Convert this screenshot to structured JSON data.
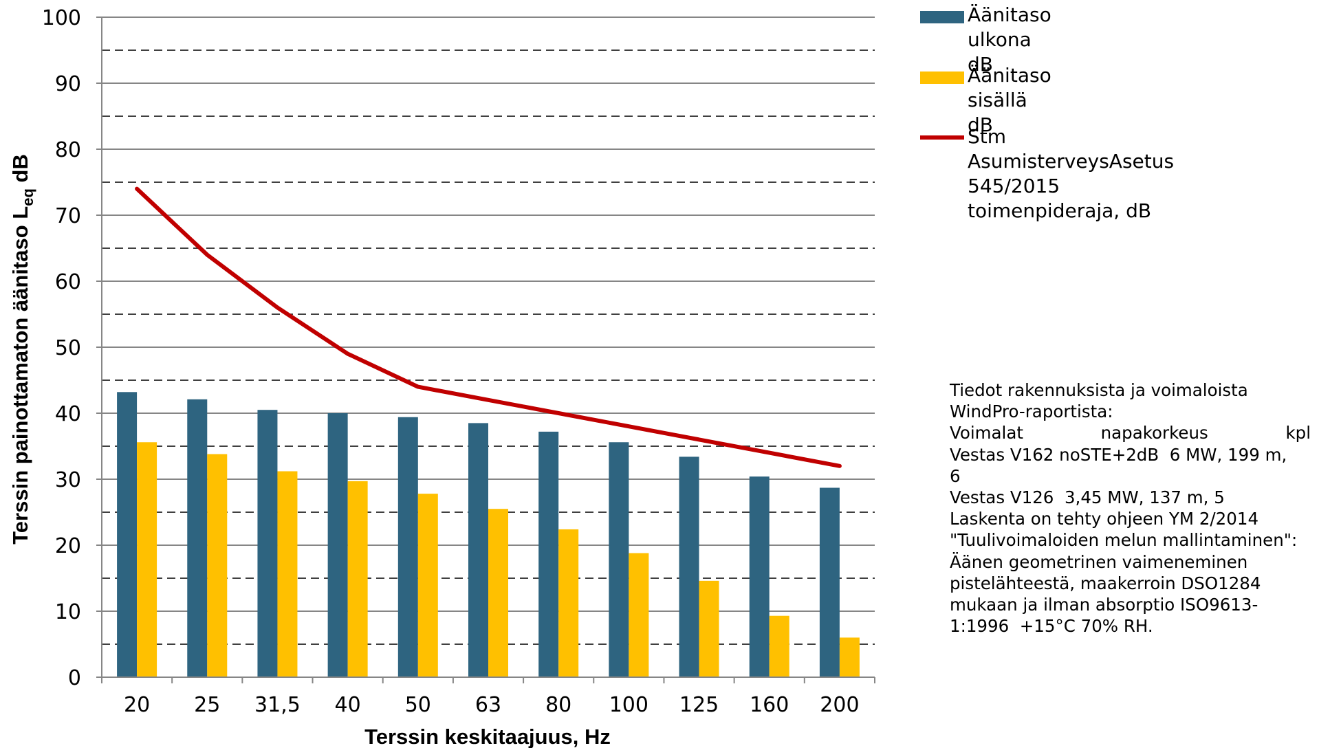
{
  "chart_data": {
    "type": "bar",
    "xlabel": "Terssin keskitaajuus, Hz",
    "ylabel": {
      "main": "Terssin painottamaton äänitaso L",
      "sub": "eq",
      "suffix": " dB"
    },
    "categories": [
      "20",
      "25",
      "31,5",
      "40",
      "50",
      "63",
      "80",
      "100",
      "125",
      "160",
      "200"
    ],
    "ylim": [
      0,
      100
    ],
    "yticks": [
      0,
      10,
      20,
      30,
      40,
      50,
      60,
      70,
      80,
      90,
      100
    ],
    "grid": {
      "solid_every": 10,
      "dashed_offsets": [
        5,
        15,
        25,
        35,
        45,
        55,
        65,
        75,
        85,
        95
      ]
    },
    "series": [
      {
        "name": "Äänitaso ulkona dB",
        "kind": "bar",
        "color": "#2E6480",
        "values": [
          43.2,
          42.1,
          40.5,
          40.0,
          39.4,
          38.5,
          37.2,
          35.6,
          33.4,
          30.4,
          28.7
        ]
      },
      {
        "name": "Äänitaso sisällä dB",
        "kind": "bar",
        "color": "#FFC000",
        "values": [
          35.6,
          33.8,
          31.2,
          29.7,
          27.8,
          25.5,
          22.4,
          18.8,
          14.6,
          9.3,
          6.0
        ]
      },
      {
        "name": "Stm AsumisterveysAsetus 545/2015\ntoimenpideraja, dB",
        "kind": "line",
        "color": "#C00000",
        "values": [
          74,
          64,
          56,
          49,
          44,
          42,
          40,
          38,
          36,
          34,
          32
        ]
      }
    ],
    "legend_position": "right"
  },
  "note": {
    "line1": "Tiedot rakennuksista ja voimaloista",
    "line2": "WindPro-raportista:",
    "line3_parts": [
      "Voimalat",
      "napakorkeus",
      "kpl"
    ],
    "line4": "Vestas V162 noSTE+2dB  6 MW, 199 m,",
    "line5": "6",
    "line6": "Vestas V126  3,45 MW, 137 m, 5",
    "line7": "Laskenta on tehty ohjeen YM 2/2014",
    "line8": "\"Tuulivoimaloiden melun mallintaminen\":",
    "line9": "Äänen geometrinen vaimeneminen",
    "line10": "pistelähteestä, maakerroin DSO1284",
    "line11": "mukaan ja ilman absorptio ISO9613-",
    "line12": "1:1996  +15°C 70% RH."
  }
}
